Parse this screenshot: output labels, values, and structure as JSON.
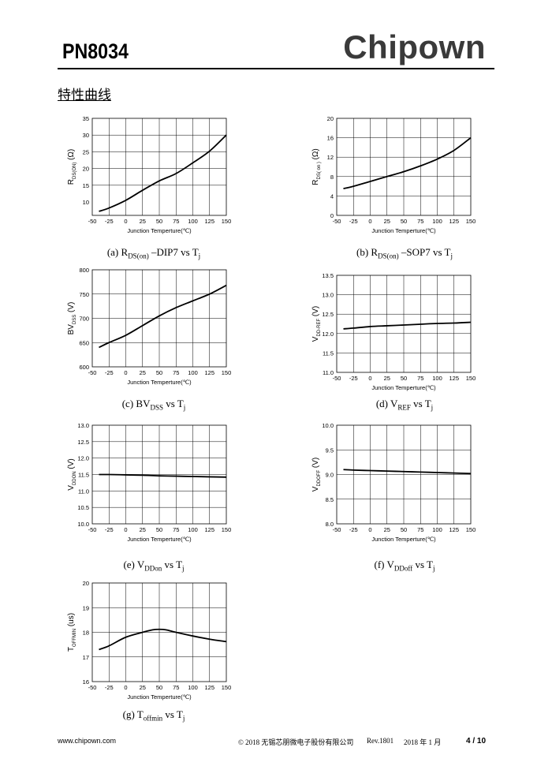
{
  "header": {
    "part_number": "PN8034",
    "brand": "Chipown",
    "section_title": "特性曲线"
  },
  "footer": {
    "url": "www.chipown.com",
    "copyright": "© 2018 无锡芯朋微电子股份有限公司",
    "revision": "Rev.1801",
    "date": "2018 年 1 月",
    "page": "4 / 10"
  },
  "colors": {
    "text": "#000000",
    "grid": "#000000",
    "brand": "#3a3a3a"
  },
  "chart_data": [
    {
      "id": "a",
      "type": "line",
      "caption": {
        "prefix": "(a) R",
        "sub1": "DS(on)",
        "mid": " –DIP7 vs T",
        "sub2": "j"
      },
      "ylabel": {
        "main": "R",
        "sub": "DS(ON)",
        "unit": " (Ω)"
      },
      "xlabel": "Junction Temperture(℃)",
      "xticks": [
        "-50",
        "-25",
        "0",
        "25",
        "50",
        "75",
        "100",
        "125",
        "150"
      ],
      "yticks": [
        "10",
        "15",
        "20",
        "25",
        "30",
        "35"
      ],
      "xlim": [
        -50,
        150
      ],
      "ylim": [
        6,
        35
      ],
      "x": [
        -40,
        -25,
        0,
        25,
        50,
        75,
        100,
        125,
        150
      ],
      "series": [
        {
          "values": [
            7.2,
            8.2,
            10.5,
            13.5,
            16.3,
            18.5,
            21.7,
            25.2,
            30.0
          ]
        }
      ]
    },
    {
      "id": "b",
      "type": "line",
      "caption": {
        "prefix": "(b) R",
        "sub1": "DS(on)",
        "mid": " –SOP7 vs T",
        "sub2": "j"
      },
      "ylabel": {
        "main": "R",
        "sub": "DS( on )",
        "unit": " (Ω)"
      },
      "xlabel": "Junction Temperture(℃)",
      "xticks": [
        "-50",
        "-25",
        "0",
        "25",
        "50",
        "75",
        "100",
        "125",
        "150"
      ],
      "yticks": [
        "0",
        "4",
        "8",
        "12",
        "16",
        "20"
      ],
      "xlim": [
        -50,
        150
      ],
      "ylim": [
        0,
        20
      ],
      "x": [
        -40,
        -25,
        0,
        25,
        50,
        75,
        100,
        125,
        150
      ],
      "series": [
        {
          "values": [
            5.5,
            6.0,
            7.0,
            8.0,
            9.0,
            10.2,
            11.6,
            13.4,
            16.0
          ]
        }
      ]
    },
    {
      "id": "c",
      "type": "line",
      "caption": {
        "prefix": "(c) BV",
        "sub1": "DSS",
        "mid": " vs T",
        "sub2": "j"
      },
      "ylabel": {
        "main": "BV",
        "sub": "DSS",
        "unit": " (V)"
      },
      "xlabel": "Junction Temperture(℃)",
      "xticks": [
        "-50",
        "-25",
        "0",
        "25",
        "50",
        "75",
        "100",
        "125",
        "150"
      ],
      "yticks": [
        "600",
        "650",
        "700",
        "750",
        "800"
      ],
      "xlim": [
        -50,
        150
      ],
      "ylim": [
        600,
        800
      ],
      "x": [
        -40,
        -25,
        0,
        25,
        50,
        75,
        100,
        125,
        150
      ],
      "series": [
        {
          "values": [
            640,
            650,
            665,
            685,
            705,
            722,
            736,
            750,
            768
          ]
        }
      ]
    },
    {
      "id": "d",
      "type": "line",
      "caption": {
        "prefix": "(d) V",
        "sub1": "REF",
        "mid": " vs T",
        "sub2": "j"
      },
      "ylabel": {
        "main": "V",
        "sub": "DD-REF",
        "unit": " (V)"
      },
      "xlabel": "Junction Temperture(℃)",
      "xticks": [
        "-50",
        "-25",
        "0",
        "25",
        "50",
        "75",
        "100",
        "125",
        "150"
      ],
      "yticks": [
        "11.0",
        "11.5",
        "12.0",
        "12.5",
        "13.0",
        "13.5"
      ],
      "xlim": [
        -50,
        150
      ],
      "ylim": [
        11.0,
        13.5
      ],
      "x": [
        -40,
        -25,
        0,
        25,
        50,
        75,
        100,
        125,
        150
      ],
      "series": [
        {
          "values": [
            12.12,
            12.14,
            12.18,
            12.2,
            12.22,
            12.24,
            12.26,
            12.27,
            12.29
          ]
        }
      ]
    },
    {
      "id": "e",
      "type": "line",
      "caption": {
        "prefix": "(e) V",
        "sub1": "DDon",
        "mid": " vs T",
        "sub2": "j"
      },
      "ylabel": {
        "main": "V",
        "sub": "DDON",
        "unit": " (V)"
      },
      "xlabel": "Junction Temperture(℃)",
      "xticks": [
        "-50",
        "-25",
        "0",
        "25",
        "50",
        "75",
        "100",
        "125",
        "150"
      ],
      "yticks": [
        "10.0",
        "10.5",
        "11.0",
        "11.5",
        "12.0",
        "12.5",
        "13.0"
      ],
      "xlim": [
        -50,
        150
      ],
      "ylim": [
        10.0,
        13.0
      ],
      "x": [
        -40,
        -25,
        0,
        25,
        50,
        75,
        100,
        125,
        150
      ],
      "series": [
        {
          "values": [
            11.5,
            11.5,
            11.49,
            11.48,
            11.46,
            11.45,
            11.44,
            11.43,
            11.42
          ]
        }
      ]
    },
    {
      "id": "f",
      "type": "line",
      "caption": {
        "prefix": "(f) V",
        "sub1": "DDoff",
        "mid": " vs T",
        "sub2": "j"
      },
      "ylabel": {
        "main": "V",
        "sub": "DDOFF",
        "unit": " (V)"
      },
      "xlabel": "Junction Temperture(℃)",
      "xticks": [
        "-50",
        "-25",
        "0",
        "25",
        "50",
        "75",
        "100",
        "125",
        "150"
      ],
      "yticks": [
        "8.0",
        "8.5",
        "9.0",
        "9.5",
        "10.0"
      ],
      "xlim": [
        -50,
        150
      ],
      "ylim": [
        8.0,
        10.0
      ],
      "x": [
        -40,
        -25,
        0,
        25,
        50,
        75,
        100,
        125,
        150
      ],
      "series": [
        {
          "values": [
            9.1,
            9.09,
            9.08,
            9.07,
            9.06,
            9.05,
            9.04,
            9.03,
            9.02
          ]
        }
      ]
    },
    {
      "id": "g",
      "type": "line",
      "caption": {
        "prefix": "(g) T",
        "sub1": "offmin",
        "mid": " vs T",
        "sub2": "j"
      },
      "ylabel": {
        "main": "T",
        "sub": "OFFMIN",
        "unit": " (us)"
      },
      "xlabel": "Junction Temperture(℃)",
      "xticks": [
        "-50",
        "-25",
        "0",
        "25",
        "50",
        "75",
        "100",
        "125",
        "150"
      ],
      "yticks": [
        "16",
        "17",
        "18",
        "19",
        "20"
      ],
      "xlim": [
        -50,
        150
      ],
      "ylim": [
        16,
        20
      ],
      "x": [
        -40,
        -25,
        0,
        25,
        40,
        50,
        60,
        75,
        100,
        125,
        150
      ],
      "series": [
        {
          "values": [
            17.3,
            17.45,
            17.8,
            18.0,
            18.1,
            18.12,
            18.1,
            18.0,
            17.85,
            17.72,
            17.62
          ]
        }
      ]
    }
  ]
}
